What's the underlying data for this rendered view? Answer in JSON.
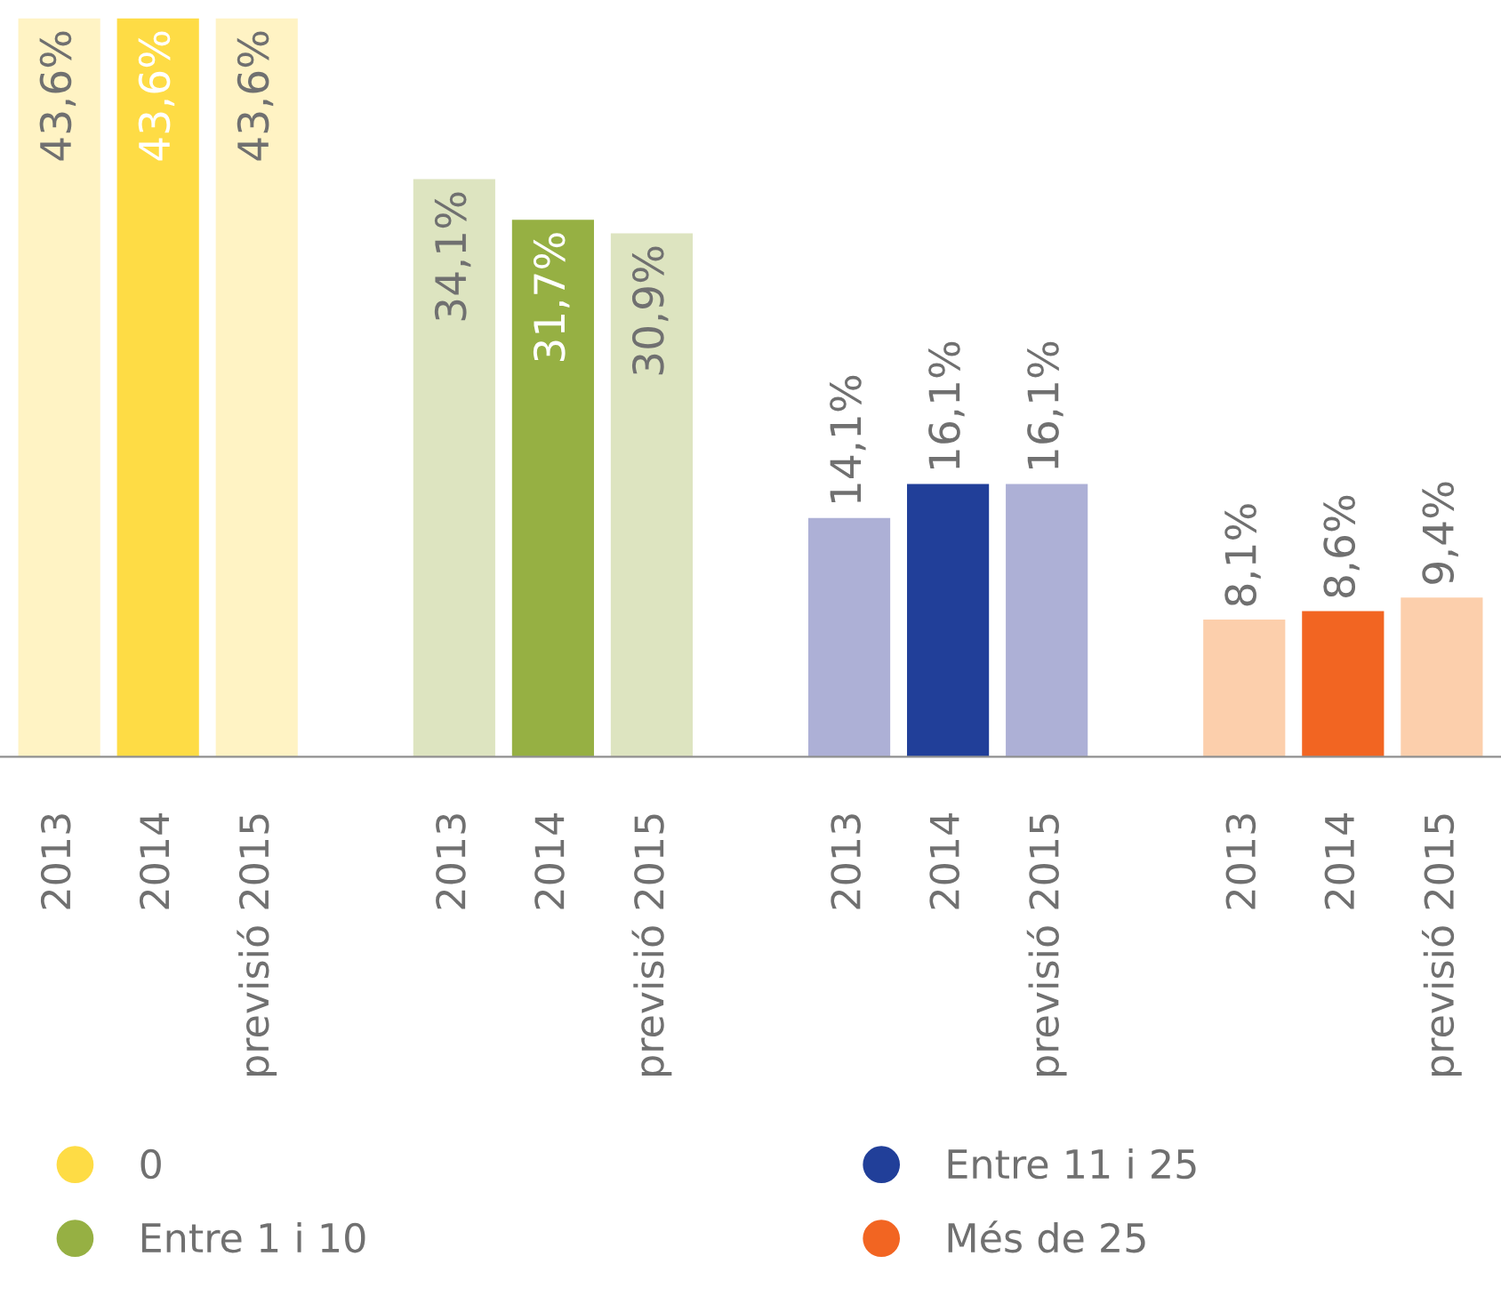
{
  "chart_data": {
    "type": "bar",
    "categories": [
      "2013",
      "2014",
      "previsió 2015",
      null,
      "2013",
      "2014",
      "previsió 2015",
      null,
      "2013",
      "2014",
      "previsió 2015",
      null,
      "2013",
      "2014",
      "previsió 2015"
    ],
    "series": [
      {
        "name": "0",
        "color": "#fedc45",
        "values": [
          43.6,
          43.6,
          43.6,
          null,
          null,
          null,
          null,
          null,
          null,
          null,
          null,
          null,
          null,
          null,
          null
        ],
        "value_labels": [
          "43,6%",
          "43,6%",
          "43,6%",
          null,
          null,
          null,
          null,
          null,
          null,
          null,
          null,
          null,
          null,
          null,
          null
        ],
        "colors": [
          "#fff3c4",
          "#fedc45",
          "#fff3c4",
          null,
          null,
          null,
          null,
          null,
          null,
          null,
          null,
          null,
          null,
          null,
          null
        ]
      },
      {
        "name": "Entre 1 i 10",
        "color": "#96b043",
        "values": [
          null,
          null,
          null,
          null,
          34.1,
          31.7,
          30.9,
          null,
          null,
          null,
          null,
          null,
          null,
          null,
          null
        ],
        "value_labels": [
          null,
          null,
          null,
          null,
          "34,1%",
          "31,7%",
          "30,9%",
          null,
          null,
          null,
          null,
          null,
          null,
          null,
          null
        ],
        "colors": [
          null,
          null,
          null,
          null,
          "#dde4c0",
          "#96b043",
          "#dde4c0",
          null,
          null,
          null,
          null,
          null,
          null,
          null,
          null
        ]
      },
      {
        "name": "Entre 11 i 25",
        "color": "#213f99",
        "values": [
          null,
          null,
          null,
          null,
          null,
          null,
          null,
          null,
          14.1,
          16.1,
          16.1,
          null,
          null,
          null,
          null
        ],
        "value_labels": [
          null,
          null,
          null,
          null,
          null,
          null,
          null,
          null,
          "14,1%",
          "16,1%",
          "16,1%",
          null,
          null,
          null,
          null
        ],
        "colors": [
          null,
          null,
          null,
          null,
          null,
          null,
          null,
          null,
          "#adb0d6",
          "#213f99",
          "#adb0d6",
          null,
          null,
          null,
          null
        ]
      },
      {
        "name": "Més de 25",
        "color": "#f26522",
        "values": [
          null,
          null,
          null,
          null,
          null,
          null,
          null,
          null,
          null,
          null,
          null,
          null,
          8.1,
          8.6,
          9.4
        ],
        "value_labels": [
          null,
          null,
          null,
          null,
          null,
          null,
          null,
          null,
          null,
          null,
          null,
          null,
          "8,1%",
          "8,6%",
          "9,4%"
        ],
        "colors": [
          null,
          null,
          null,
          null,
          null,
          null,
          null,
          null,
          null,
          null,
          null,
          null,
          "#fccfac",
          "#f26522",
          "#fccfac"
        ]
      }
    ],
    "relative": false,
    "legend": "bottom",
    "grid": false
  }
}
